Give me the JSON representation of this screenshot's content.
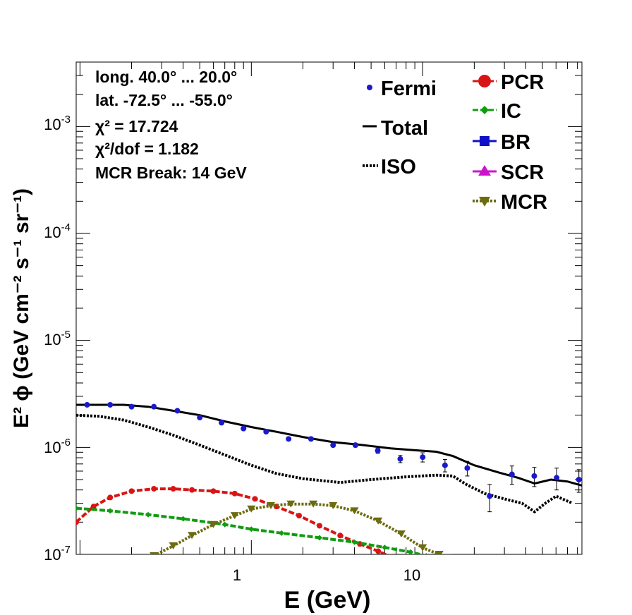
{
  "chart_data": {
    "type": "line",
    "xlabel": "E (GeV)",
    "ylabel": "E² ϕ (GeV cm⁻² s⁻¹ sr⁻¹)",
    "xscale": "log",
    "yscale": "log",
    "xlim": [
      0.095,
      85
    ],
    "ylim": [
      1e-07,
      0.004
    ],
    "x_tick_labels": [
      "1",
      "10"
    ],
    "y_tick_labels": [
      {
        "base": "10",
        "exp": "-7"
      },
      {
        "base": "10",
        "exp": "-6"
      },
      {
        "base": "10",
        "exp": "-5"
      },
      {
        "base": "10",
        "exp": "-4"
      },
      {
        "base": "10",
        "exp": "-3"
      }
    ],
    "annotations": [
      "long. 40.0° ... 20.0°",
      "lat. -72.5° ... -55.0°",
      "χ² = 17.724",
      "χ²/dof = 1.182",
      "MCR Break: 14 GeV"
    ],
    "legend_left": [
      "Fermi",
      "Total",
      "ISO"
    ],
    "legend_right": [
      "PCR",
      "IC",
      "BR",
      "SCR",
      "MCR"
    ],
    "grid": false,
    "series": [
      {
        "name": "Fermi",
        "color": "#1a1acc",
        "style": "points",
        "x": [
          0.11,
          0.15,
          0.2,
          0.27,
          0.37,
          0.5,
          0.67,
          0.9,
          1.22,
          1.65,
          2.23,
          3.0,
          4.05,
          5.47,
          7.4,
          10.0,
          13.5,
          18.2,
          24.6,
          33.2,
          44.8,
          60.5,
          81.6
        ],
        "y": [
          2.5e-06,
          2.5e-06,
          2.4e-06,
          2.4e-06,
          2.2e-06,
          1.9e-06,
          1.7e-06,
          1.5e-06,
          1.4e-06,
          1.2e-06,
          1.2e-06,
          1.05e-06,
          1.05e-06,
          9.3e-07,
          7.8e-07,
          8.1e-07,
          6.8e-07,
          6.4e-07,
          3.5e-07,
          5.6e-07,
          5.4e-07,
          5.2e-07,
          5e-07
        ],
        "yerr": [
          3e-08,
          3e-08,
          3e-08,
          3e-08,
          3e-08,
          3e-08,
          3e-08,
          3e-08,
          3e-08,
          3e-08,
          3e-08,
          3e-08,
          4e-08,
          5e-08,
          6e-08,
          8e-08,
          9e-08,
          1e-07,
          1e-07,
          1.1e-07,
          1.1e-07,
          1.2e-07,
          1.2e-07
        ]
      },
      {
        "name": "Total",
        "color": "#000000",
        "style": "solid",
        "x": [
          0.095,
          0.13,
          0.18,
          0.25,
          0.35,
          0.5,
          0.7,
          1.0,
          1.4,
          2.0,
          3.0,
          4.5,
          6.5,
          9.0,
          12.0,
          15.0,
          20.0,
          28.0,
          36.0,
          45.0,
          56.0,
          70.0,
          85.0
        ],
        "y": [
          2.5e-06,
          2.5e-06,
          2.5e-06,
          2.4e-06,
          2.2e-06,
          2e-06,
          1.75e-06,
          1.55e-06,
          1.4e-06,
          1.25e-06,
          1.12e-06,
          1.05e-06,
          9.8e-07,
          9.4e-07,
          9.1e-07,
          8.3e-07,
          6.8e-07,
          5.8e-07,
          5.2e-07,
          4.6e-07,
          5e-07,
          4.8e-07,
          4.4e-07
        ]
      },
      {
        "name": "ISO",
        "color": "#000000",
        "style": "dotted",
        "x": [
          0.095,
          0.13,
          0.18,
          0.25,
          0.35,
          0.5,
          0.7,
          1.0,
          1.4,
          2.0,
          3.3,
          5.0,
          8.0,
          12.0,
          15.0,
          18.0,
          23.0,
          30.0,
          38.0,
          45.0,
          52.0,
          60.0,
          75.0
        ],
        "y": [
          2e-06,
          1.95e-06,
          1.8e-06,
          1.55e-06,
          1.3e-06,
          1.05e-06,
          8.5e-07,
          6.8e-07,
          5.7e-07,
          5.1e-07,
          4.7e-07,
          5e-07,
          5.3e-07,
          5.5e-07,
          5.4e-07,
          4.5e-07,
          3.7e-07,
          3.3e-07,
          3e-07,
          2.5e-07,
          3e-07,
          3.5e-07,
          3e-07
        ]
      },
      {
        "name": "PCR",
        "color": "#d91414",
        "style": "dashed-markers",
        "x": [
          0.095,
          0.12,
          0.15,
          0.2,
          0.27,
          0.35,
          0.45,
          0.6,
          0.8,
          1.05,
          1.4,
          1.9,
          2.5,
          3.3,
          4.3,
          5.5,
          6.5
        ],
        "y": [
          2e-07,
          2.8e-07,
          3.4e-07,
          3.9e-07,
          4.1e-07,
          4.1e-07,
          4e-07,
          3.9e-07,
          3.7e-07,
          3.3e-07,
          2.8e-07,
          2.3e-07,
          1.85e-07,
          1.5e-07,
          1.25e-07,
          1.07e-07,
          9.5e-08
        ]
      },
      {
        "name": "IC",
        "color": "#109c10",
        "style": "dashed-markers",
        "x": [
          0.095,
          0.15,
          0.25,
          0.4,
          0.7,
          1.0,
          1.5,
          2.5,
          4.0,
          6.0,
          8.5,
          10.5
        ],
        "y": [
          2.7e-07,
          2.55e-07,
          2.35e-07,
          2.15e-07,
          1.9e-07,
          1.72e-07,
          1.58e-07,
          1.43e-07,
          1.3e-07,
          1.16e-07,
          1.05e-07,
          9.7e-08
        ]
      },
      {
        "name": "MCR",
        "color": "#6b6b10",
        "style": "dotted-markers",
        "x": [
          0.27,
          0.35,
          0.45,
          0.6,
          0.8,
          1.0,
          1.3,
          1.7,
          2.3,
          3.0,
          4.0,
          5.5,
          7.5,
          10.0,
          12.5,
          14.0
        ],
        "y": [
          9.7e-08,
          1.2e-07,
          1.5e-07,
          1.9e-07,
          2.3e-07,
          2.65e-07,
          2.85e-07,
          2.95e-07,
          2.95e-07,
          2.85e-07,
          2.55e-07,
          2.05e-07,
          1.55e-07,
          1.15e-07,
          1e-07,
          9.3e-08
        ]
      },
      {
        "name": "BR",
        "color": "#1010c8",
        "style": "none",
        "x": [],
        "y": []
      },
      {
        "name": "SCR",
        "color": "#cc14cc",
        "style": "none",
        "x": [],
        "y": []
      }
    ]
  }
}
